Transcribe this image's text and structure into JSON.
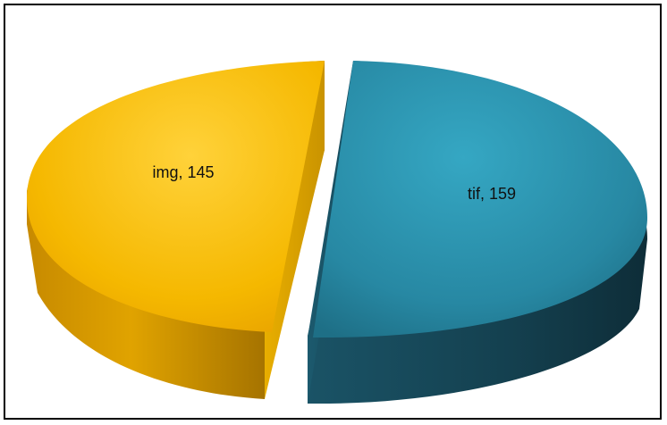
{
  "chart_data": {
    "type": "pie",
    "style": "3d-exploded",
    "title": "",
    "slices": [
      {
        "label": "img",
        "value": 145,
        "color": "#F5B800",
        "data_label": "img, 145"
      },
      {
        "label": "tif",
        "value": 159,
        "color": "#2A95B0",
        "data_label": "tif, 159"
      }
    ],
    "legend": "none"
  }
}
